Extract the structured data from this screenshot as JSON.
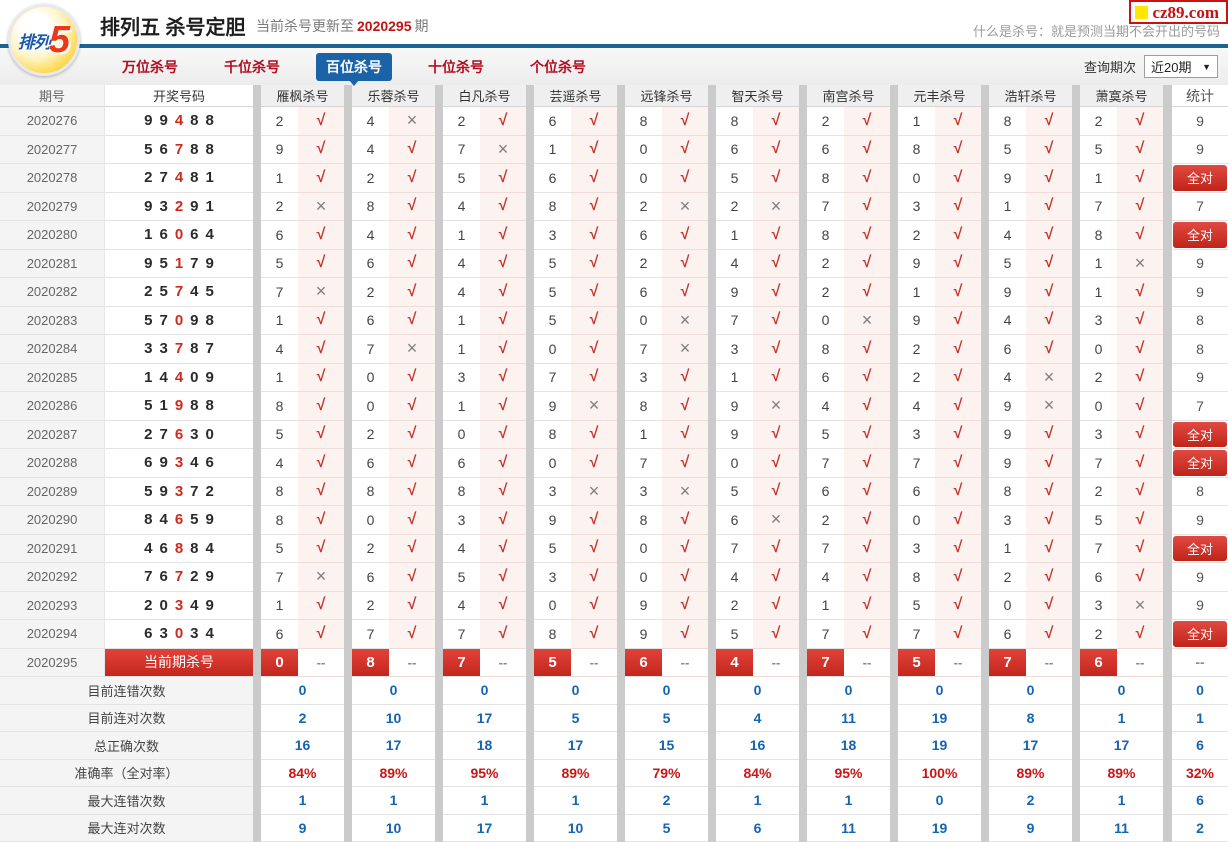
{
  "site": {
    "logo_text": "排列",
    "logo_number": "5",
    "brand": "cz89.com"
  },
  "header": {
    "title": "排列五 杀号定胆",
    "update_prefix": "当前杀号更新至",
    "update_period": "2020295",
    "update_suffix": "期",
    "tagline": "什么是杀号：就是预测当期不会开出的号码"
  },
  "tabs": [
    {
      "label": "万位杀号",
      "active": false
    },
    {
      "label": "千位杀号",
      "active": false
    },
    {
      "label": "百位杀号",
      "active": true
    },
    {
      "label": "十位杀号",
      "active": false
    },
    {
      "label": "个位杀号",
      "active": false
    }
  ],
  "query": {
    "label": "查询期次",
    "selected": "近20期"
  },
  "icons": {
    "check": "√",
    "cross": "×",
    "dropdown_arrow": "▼"
  },
  "colors": {
    "accent_red": "#c9302c",
    "tab_blue": "#1b63a7",
    "value_blue": "#1464b4",
    "value_red": "#cc1414",
    "check_red": "#c5352e",
    "cross_gray": "#7d7d7d"
  },
  "table": {
    "headers": [
      "期号",
      "开奖号码",
      "雁枫杀号",
      "乐蓉杀号",
      "白凡杀号",
      "芸遥杀号",
      "远锋杀号",
      "智天杀号",
      "南宫杀号",
      "元丰杀号",
      "浩轩杀号",
      "萧寞杀号",
      "统计"
    ],
    "red_digit_index": 2,
    "all_correct_label": "全对",
    "rows": [
      {
        "period": "2020276",
        "digits": "99488",
        "kills": "2426882182",
        "marks": "vxvvvvvvvv",
        "stat": "9"
      },
      {
        "period": "2020277",
        "digits": "56788",
        "kills": "9471066855",
        "marks": "vvxvvvvvvv",
        "stat": "9"
      },
      {
        "period": "2020278",
        "digits": "27481",
        "kills": "1256058091",
        "marks": "vvvvvvvvvv",
        "stat": "全对"
      },
      {
        "period": "2020279",
        "digits": "93291",
        "kills": "2848227317",
        "marks": "xvvvxxvvvv",
        "stat": "7"
      },
      {
        "period": "2020280",
        "digits": "16064",
        "kills": "6413618248",
        "marks": "vvvvvvvvvv",
        "stat": "全对"
      },
      {
        "period": "2020281",
        "digits": "95179",
        "kills": "5645242951",
        "marks": "vvvvvvvvvx",
        "stat": "9"
      },
      {
        "period": "2020282",
        "digits": "25745",
        "kills": "7245692191",
        "marks": "xvvvvvvvvv",
        "stat": "9"
      },
      {
        "period": "2020283",
        "digits": "57098",
        "kills": "1615070943",
        "marks": "vvvvxvxvvv",
        "stat": "8"
      },
      {
        "period": "2020284",
        "digits": "33787",
        "kills": "4710738260",
        "marks": "vxvvxvvvvv",
        "stat": "8"
      },
      {
        "period": "2020285",
        "digits": "14409",
        "kills": "1037316242",
        "marks": "vvvvvvvvxv",
        "stat": "9"
      },
      {
        "period": "2020286",
        "digits": "51988",
        "kills": "8019894490",
        "marks": "vvvxvxvvxv",
        "stat": "7"
      },
      {
        "period": "2020287",
        "digits": "27630",
        "kills": "5208195393",
        "marks": "vvvvvvvvvv",
        "stat": "全对"
      },
      {
        "period": "2020288",
        "digits": "69346",
        "kills": "4660707797",
        "marks": "vvvvvvvvvv",
        "stat": "全对"
      },
      {
        "period": "2020289",
        "digits": "59372",
        "kills": "8883356682",
        "marks": "vvvxxvvvvv",
        "stat": "8"
      },
      {
        "period": "2020290",
        "digits": "84659",
        "kills": "8039862035",
        "marks": "vvvvvxvvvv",
        "stat": "9"
      },
      {
        "period": "2020291",
        "digits": "46884",
        "kills": "5245077317",
        "marks": "vvvvvvvvvv",
        "stat": "全对"
      },
      {
        "period": "2020292",
        "digits": "76729",
        "kills": "7653044826",
        "marks": "xvvvvvvvvv",
        "stat": "9"
      },
      {
        "period": "2020293",
        "digits": "20349",
        "kills": "1240921503",
        "marks": "vvvvvvvvvx",
        "stat": "9"
      },
      {
        "period": "2020294",
        "digits": "63034",
        "kills": "6778957762",
        "marks": "vvvvvvvvvv",
        "stat": "全对"
      }
    ],
    "current_row": {
      "period": "2020295",
      "banner": "当前期杀号",
      "kills": "0875647576",
      "placeholder": "--",
      "stat": "--"
    },
    "summary": [
      {
        "label": "目前连错次数",
        "color": "blue",
        "values": [
          "0",
          "0",
          "0",
          "0",
          "0",
          "0",
          "0",
          "0",
          "0",
          "0",
          "0"
        ]
      },
      {
        "label": "目前连对次数",
        "color": "blue",
        "values": [
          "2",
          "10",
          "17",
          "5",
          "5",
          "4",
          "11",
          "19",
          "8",
          "1",
          "1"
        ]
      },
      {
        "label": "总正确次数",
        "color": "blue",
        "values": [
          "16",
          "17",
          "18",
          "17",
          "15",
          "16",
          "18",
          "19",
          "17",
          "17",
          "6"
        ]
      },
      {
        "label": "准确率（全对率）",
        "color": "red",
        "values": [
          "84%",
          "89%",
          "95%",
          "89%",
          "79%",
          "84%",
          "95%",
          "100%",
          "89%",
          "89%",
          "32%"
        ]
      },
      {
        "label": "最大连错次数",
        "color": "blue",
        "values": [
          "1",
          "1",
          "1",
          "1",
          "2",
          "1",
          "1",
          "0",
          "2",
          "1",
          "6"
        ]
      },
      {
        "label": "最大连对次数",
        "color": "blue",
        "values": [
          "9",
          "10",
          "17",
          "10",
          "5",
          "6",
          "11",
          "19",
          "9",
          "11",
          "2"
        ]
      }
    ]
  }
}
